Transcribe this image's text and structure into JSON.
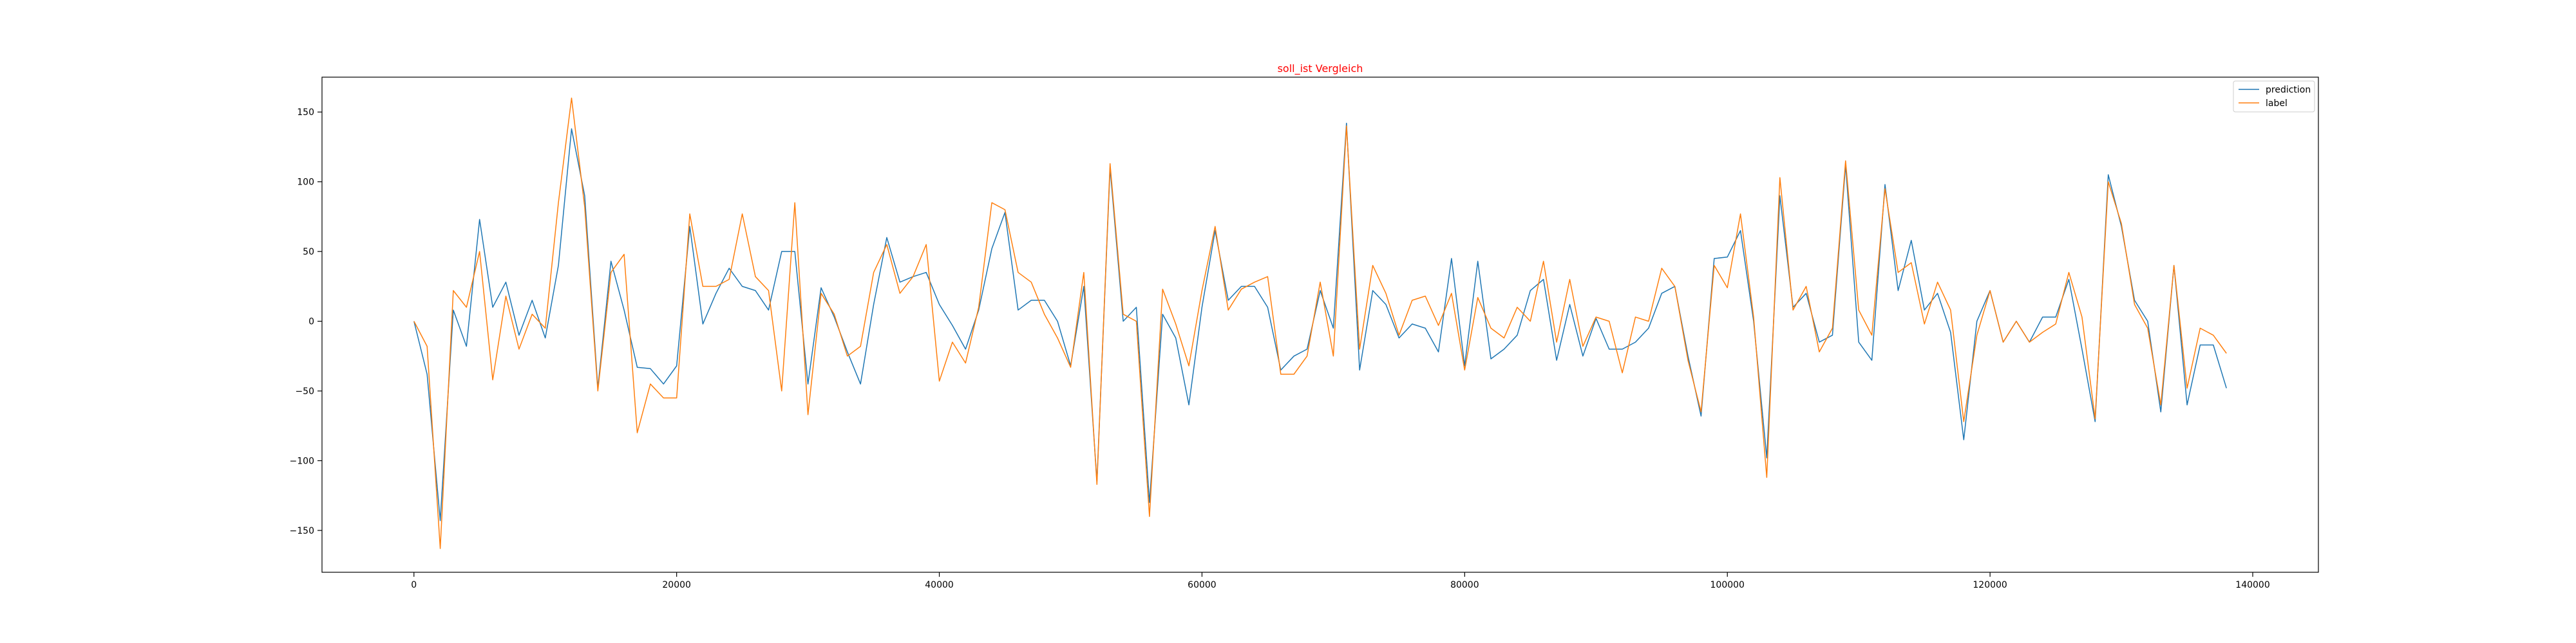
{
  "chart_data": {
    "type": "line",
    "title": "soll_ist Vergleich",
    "xlabel": "",
    "ylabel": "",
    "xlim": [
      -7000,
      145000
    ],
    "ylim": [
      -180,
      175
    ],
    "xticks": [
      0,
      20000,
      40000,
      60000,
      80000,
      100000,
      120000,
      140000
    ],
    "yticks": [
      -150,
      -100,
      -50,
      0,
      50,
      100,
      150
    ],
    "x_start": 0,
    "x_step": 1000,
    "legend_position": "upper right",
    "grid": false,
    "colors": {
      "title": "#ff0000",
      "prediction": "#1f77b4",
      "label": "#ff7f0e"
    },
    "series": [
      {
        "name": "prediction",
        "values": [
          0,
          -38,
          -143,
          8,
          -18,
          73,
          10,
          28,
          -10,
          15,
          -12,
          40,
          138,
          90,
          -48,
          43,
          8,
          -33,
          -34,
          -45,
          -32,
          68,
          -2,
          20,
          38,
          25,
          22,
          8,
          50,
          50,
          -45,
          24,
          3,
          -22,
          -45,
          12,
          60,
          28,
          32,
          35,
          12,
          -3,
          -20,
          8,
          52,
          78,
          8,
          15,
          15,
          0,
          -32,
          25,
          -115,
          110,
          0,
          10,
          -130,
          5,
          -12,
          -60,
          10,
          65,
          15,
          25,
          25,
          10,
          -35,
          -25,
          -20,
          22,
          -5,
          142,
          -35,
          22,
          12,
          -12,
          -2,
          -5,
          -22,
          45,
          -32,
          43,
          -27,
          -20,
          -10,
          22,
          30,
          -28,
          12,
          -25,
          2,
          -20,
          -20,
          -15,
          -5,
          20,
          25,
          -25,
          -68,
          45,
          46,
          65,
          0,
          -98,
          90,
          10,
          20,
          -15,
          -10,
          112,
          -15,
          -28,
          98,
          22,
          58,
          8,
          20,
          -8,
          -85,
          0,
          22,
          -15,
          0,
          -15,
          3,
          3,
          30,
          -20,
          -72,
          105,
          68,
          15,
          0,
          -65,
          40,
          -60,
          -17,
          -17,
          -48
        ]
      },
      {
        "name": "label",
        "values": [
          0,
          -18,
          -163,
          22,
          10,
          50,
          -42,
          18,
          -20,
          5,
          -5,
          85,
          160,
          82,
          -50,
          35,
          48,
          -80,
          -45,
          -55,
          -55,
          77,
          25,
          25,
          30,
          77,
          32,
          22,
          -50,
          85,
          -67,
          20,
          5,
          -25,
          -18,
          35,
          55,
          20,
          32,
          55,
          -43,
          -15,
          -30,
          10,
          85,
          80,
          35,
          28,
          5,
          -12,
          -33,
          35,
          -117,
          113,
          5,
          0,
          -140,
          23,
          -2,
          -32,
          22,
          68,
          8,
          23,
          28,
          32,
          -38,
          -38,
          -25,
          28,
          -25,
          140,
          -20,
          40,
          20,
          -10,
          15,
          18,
          -3,
          20,
          -35,
          17,
          -5,
          -12,
          10,
          0,
          43,
          -15,
          30,
          -18,
          3,
          0,
          -37,
          3,
          0,
          38,
          25,
          -28,
          -65,
          40,
          24,
          77,
          3,
          -112,
          103,
          8,
          25,
          -22,
          -5,
          115,
          8,
          -10,
          95,
          35,
          42,
          -2,
          28,
          8,
          -72,
          -10,
          22,
          -15,
          0,
          -15,
          -8,
          -2,
          35,
          3,
          -70,
          100,
          70,
          12,
          -5,
          -60,
          40,
          -48,
          -5,
          -10,
          -23
        ]
      }
    ]
  }
}
